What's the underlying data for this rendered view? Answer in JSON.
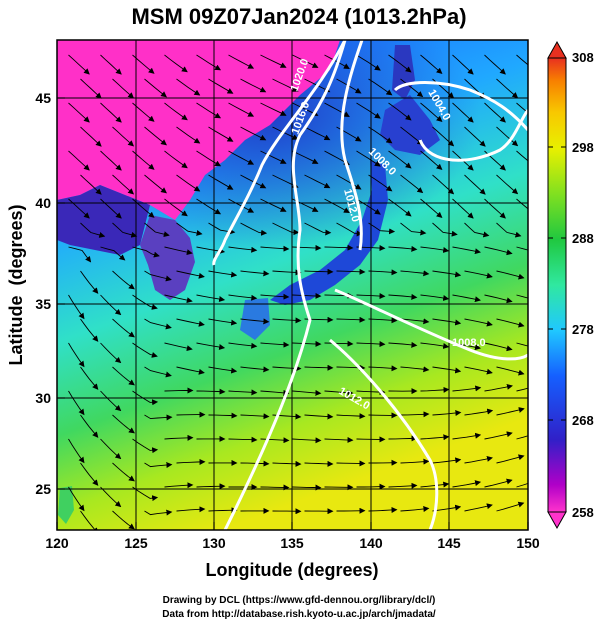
{
  "title": "MSM 09Z07Jan2024 (1013.2hPa)",
  "map": {
    "xlabel": "Longitude (degrees)",
    "ylabel": "Latitude  (degrees)",
    "xticks": [
      "120",
      "125",
      "130",
      "135",
      "140",
      "145",
      "150"
    ],
    "yticks": [
      "45",
      "40",
      "35",
      "30",
      "25"
    ],
    "lon_range": [
      120,
      150
    ],
    "lat_range": [
      22.4,
      47.6
    ],
    "isobar_labels": [
      "1020.0",
      "1016.0",
      "1012.0",
      "1008.0",
      "1004.0",
      "1008.0",
      "1012.0",
      "1016.0"
    ]
  },
  "colorbar": {
    "ticks": [
      "308",
      "298",
      "288",
      "278",
      "268",
      "258"
    ],
    "range": [
      258,
      308
    ],
    "colors": [
      "#ff33cc",
      "#b000c8",
      "#3020c8",
      "#1560ff",
      "#20c8ff",
      "#30e8a0",
      "#20c840",
      "#80e020",
      "#e8f000",
      "#f8c800",
      "#f88000",
      "#e83020"
    ]
  },
  "credits": {
    "line1": "Drawing by DCL (https://www.gfd-dennou.org/library/dcl/)",
    "line2": "Data from http://database.rish.kyoto-u.ac.jp/arch/jmadata/"
  }
}
